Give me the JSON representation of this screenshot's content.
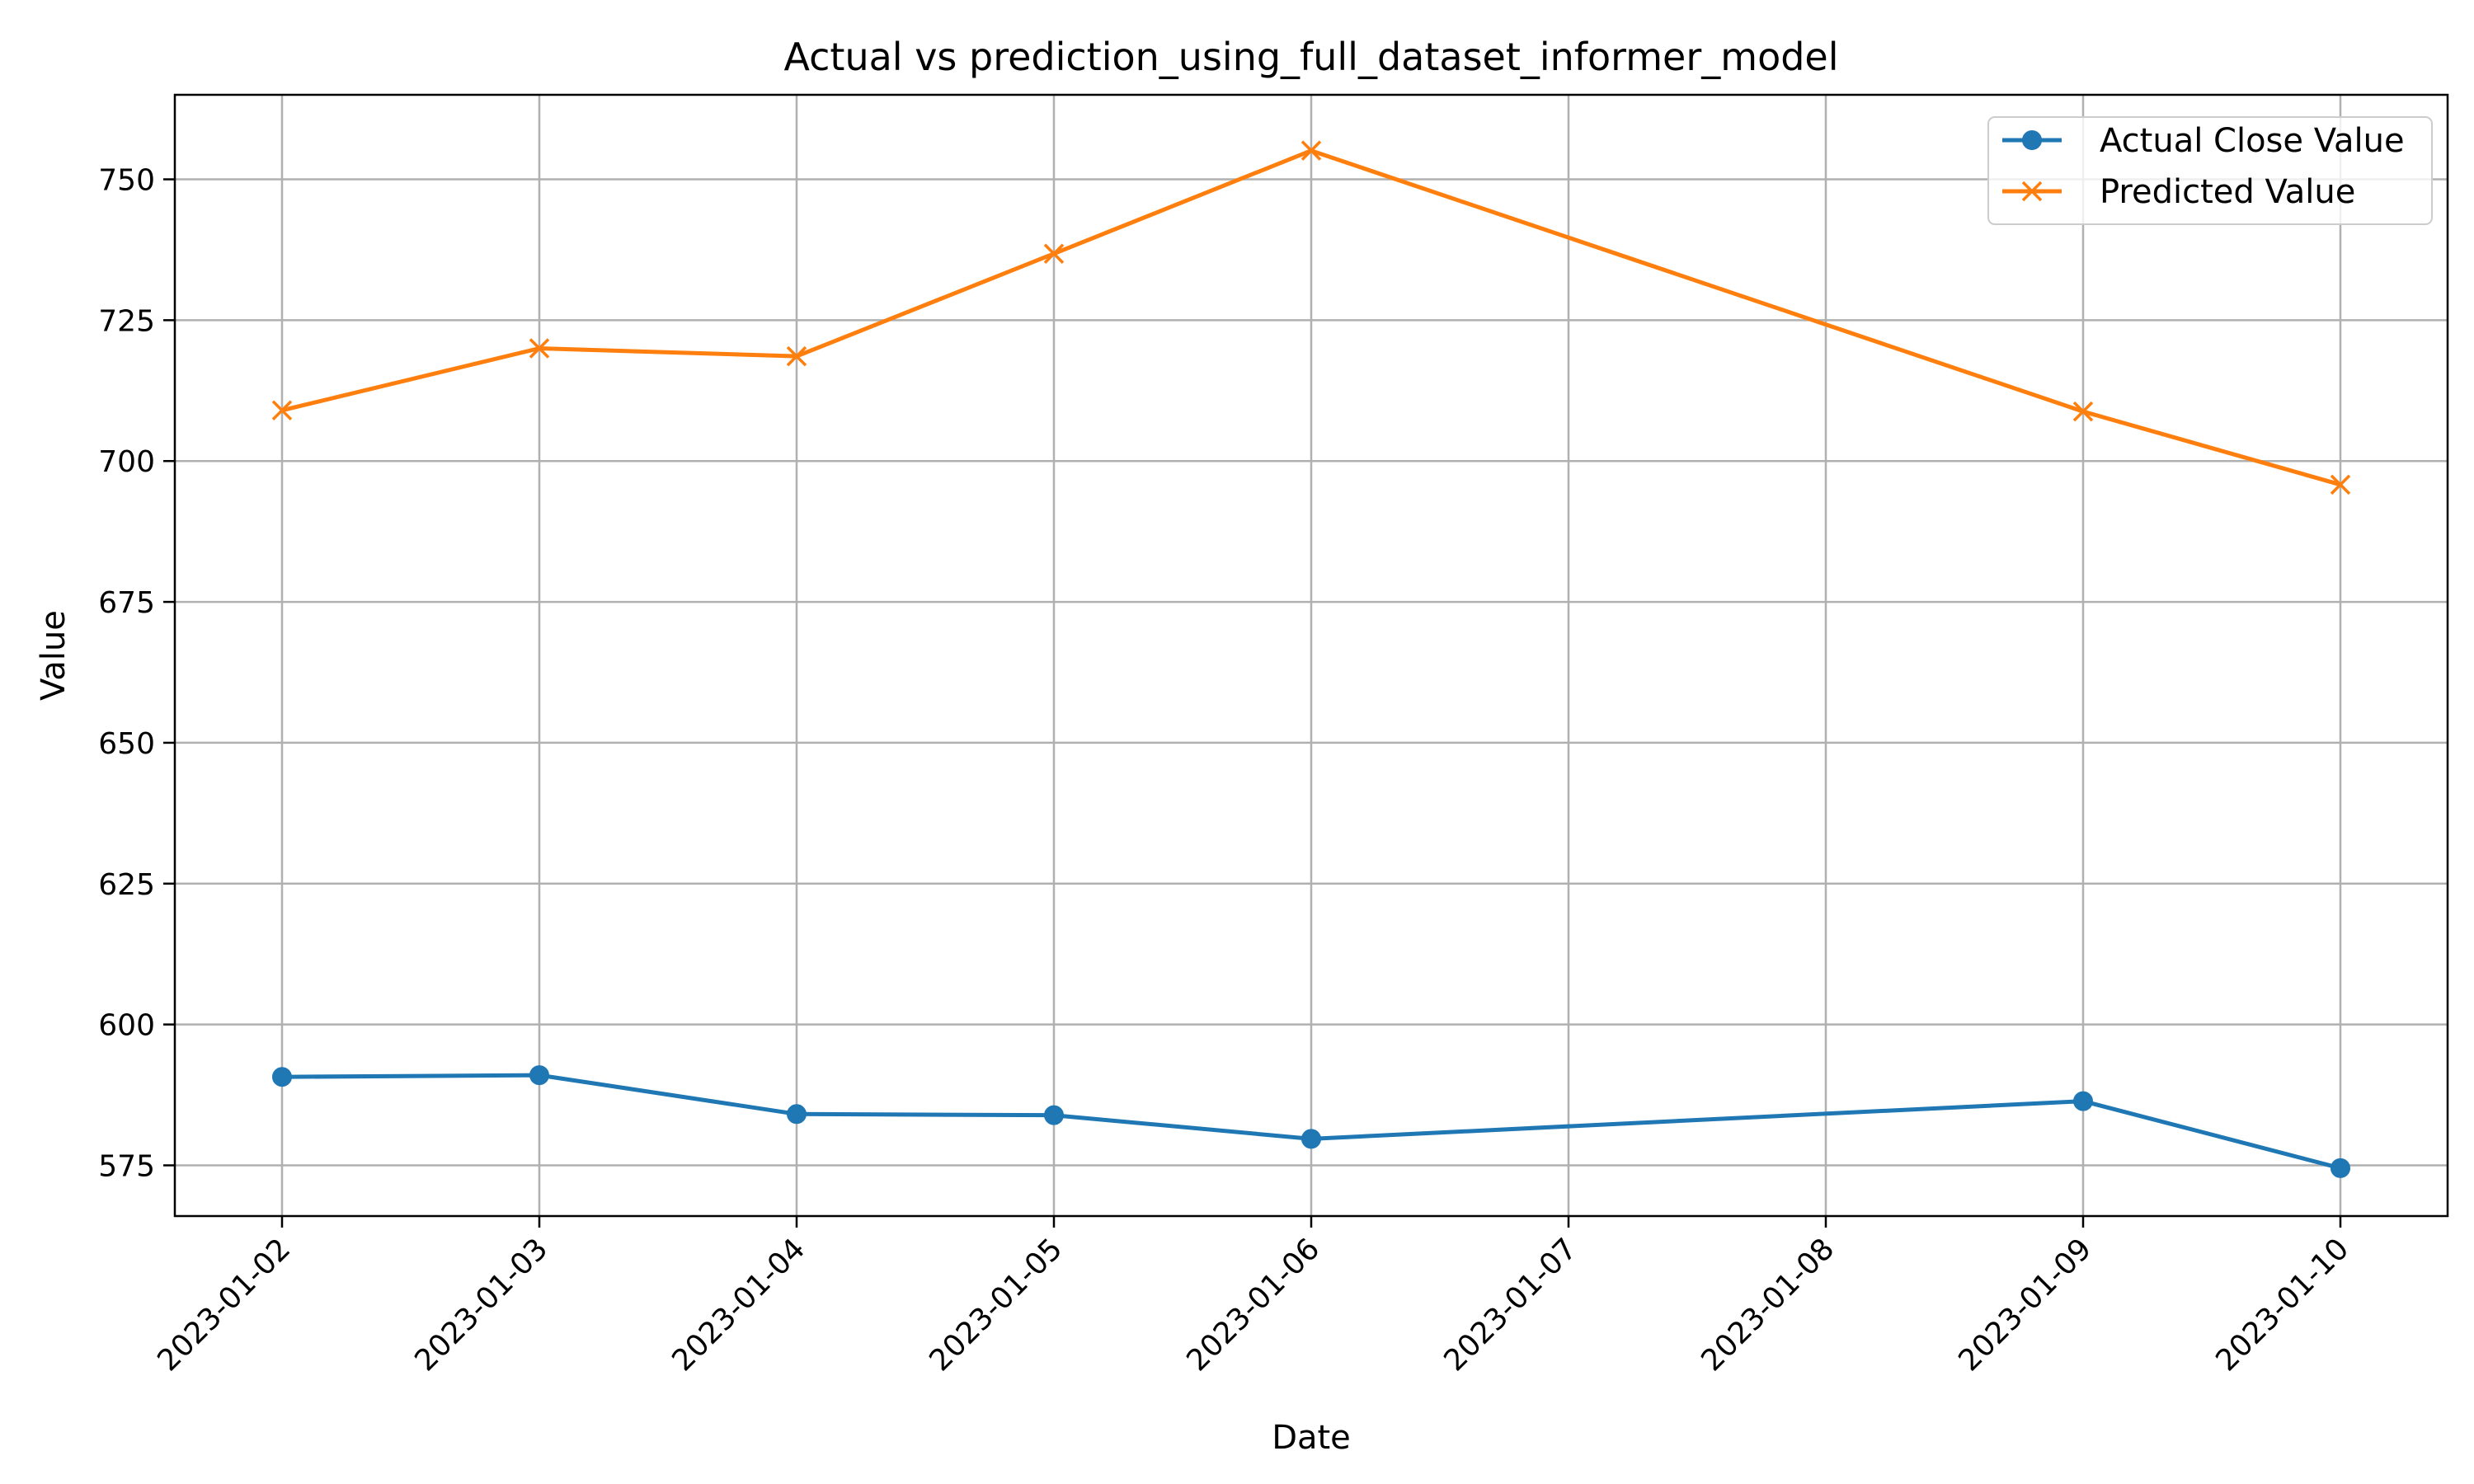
{
  "chart_data": {
    "type": "line",
    "title": "Actual vs prediction_using_full_dataset_informer_model",
    "xlabel": "Date",
    "ylabel": "Value",
    "x_ticks": [
      "2023-01-02",
      "2023-01-03",
      "2023-01-04",
      "2023-01-05",
      "2023-01-06",
      "2023-01-07",
      "2023-01-08",
      "2023-01-09",
      "2023-01-10"
    ],
    "y_ticks": [
      575,
      600,
      625,
      650,
      675,
      700,
      725,
      750
    ],
    "xlim": [
      "2023-01-01T14:00",
      "2023-01-10T10:00"
    ],
    "ylim": [
      566,
      765
    ],
    "grid": true,
    "legend_position": "top-right",
    "series": [
      {
        "name": "Actual Close Value",
        "color": "#1f77b4",
        "marker": "circle",
        "x": [
          "2023-01-02",
          "2023-01-03",
          "2023-01-04",
          "2023-01-05",
          "2023-01-06",
          "2023-01-09",
          "2023-01-10"
        ],
        "values": [
          590.7,
          591.0,
          584.1,
          583.9,
          579.7,
          586.4,
          574.5
        ]
      },
      {
        "name": "Predicted Value",
        "color": "#ff7f0e",
        "marker": "x",
        "x": [
          "2023-01-02",
          "2023-01-03",
          "2023-01-04",
          "2023-01-05",
          "2023-01-06",
          "2023-01-09",
          "2023-01-10"
        ],
        "values": [
          709.0,
          720.0,
          718.6,
          736.8,
          755.1,
          708.8,
          695.8
        ]
      }
    ]
  }
}
